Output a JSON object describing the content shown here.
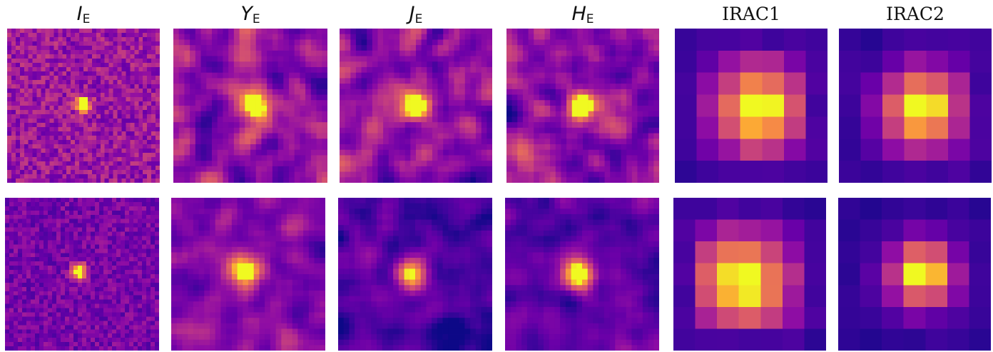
{
  "bands": [
    {
      "id": "IE",
      "main": "I",
      "sub": "E",
      "italic": true
    },
    {
      "id": "YE",
      "main": "Y",
      "sub": "E",
      "italic": true
    },
    {
      "id": "JE",
      "main": "J",
      "sub": "E",
      "italic": true
    },
    {
      "id": "HE",
      "main": "H",
      "sub": "E",
      "italic": true
    },
    {
      "id": "IRAC1",
      "main": "IRAC1",
      "sub": "",
      "italic": false
    },
    {
      "id": "IRAC2",
      "main": "IRAC2",
      "sub": "",
      "italic": false
    }
  ],
  "colormap": "plasma",
  "rows": [
    {
      "id": "row-1",
      "cutouts": [
        "IE",
        "YE",
        "JE",
        "HE",
        "IRAC1",
        "IRAC2"
      ]
    },
    {
      "id": "row-2",
      "cutouts": [
        "IE",
        "YE",
        "JE",
        "HE",
        "IRAC1",
        "IRAC2"
      ]
    }
  ]
}
